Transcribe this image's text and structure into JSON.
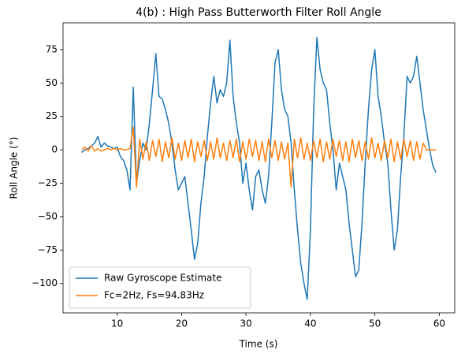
{
  "chart_data": {
    "type": "line",
    "title": "4(b) : High Pass Butterworth Filter Roll Angle",
    "xlabel": "Time (s)",
    "ylabel": "Roll Angle (°)",
    "xlim": [
      1.6,
      62.4
    ],
    "ylim": [
      -122,
      95
    ],
    "xticks": [
      10,
      20,
      30,
      40,
      50,
      60
    ],
    "yticks": [
      {
        "value": -100,
        "label": "−100"
      },
      {
        "value": -75,
        "label": "−75"
      },
      {
        "value": -50,
        "label": "−50"
      },
      {
        "value": -25,
        "label": "−25"
      },
      0,
      25,
      50,
      75
    ],
    "legend": "lower left",
    "x": [
      4.5,
      5,
      5.5,
      6,
      6.5,
      7,
      7.5,
      8,
      8.5,
      9,
      9.5,
      10,
      10.5,
      11,
      11.5,
      12,
      12.5,
      13,
      13.5,
      14,
      14.5,
      15,
      15.5,
      16,
      16.5,
      17,
      17.5,
      18,
      18.5,
      19,
      19.5,
      20,
      20.5,
      21,
      21.5,
      22,
      22.5,
      23,
      23.5,
      24,
      24.5,
      25,
      25.5,
      26,
      26.5,
      27,
      27.5,
      28,
      28.5,
      29,
      29.5,
      30,
      30.5,
      31,
      31.5,
      32,
      32.5,
      33,
      33.5,
      34,
      34.5,
      35,
      35.5,
      36,
      36.5,
      37,
      37.5,
      38,
      38.5,
      39,
      39.5,
      40,
      40.5,
      41,
      41.5,
      42,
      42.5,
      43,
      43.5,
      44,
      44.5,
      45,
      45.5,
      46,
      46.5,
      47,
      47.5,
      48,
      48.5,
      49,
      49.5,
      50,
      50.5,
      51,
      51.5,
      52,
      52.5,
      53,
      53.5,
      54,
      54.5,
      55,
      55.5,
      56,
      56.5,
      57,
      57.5,
      58,
      58.5,
      59,
      59.5
    ],
    "series": [
      {
        "name": "Raw Gyroscope Estimate",
        "color": "#1f77b4",
        "values": [
          -2,
          0,
          1,
          3,
          5,
          10,
          2,
          5,
          3,
          2,
          1,
          2,
          -5,
          -8,
          -15,
          -30,
          47,
          -25,
          -8,
          5,
          0,
          20,
          45,
          72,
          40,
          38,
          30,
          20,
          5,
          -15,
          -30,
          -25,
          -20,
          -40,
          -60,
          -82,
          -70,
          -40,
          -20,
          10,
          35,
          55,
          35,
          45,
          40,
          50,
          82,
          40,
          20,
          5,
          -25,
          -10,
          -30,
          -45,
          -20,
          -15,
          -30,
          -40,
          -20,
          20,
          65,
          75,
          45,
          30,
          25,
          5,
          -30,
          -60,
          -85,
          -100,
          -112,
          -60,
          30,
          84,
          60,
          50,
          45,
          20,
          0,
          -30,
          -10,
          -20,
          -30,
          -55,
          -75,
          -95,
          -90,
          -55,
          -10,
          30,
          60,
          75,
          40,
          25,
          5,
          -10,
          -45,
          -75,
          -60,
          -20,
          10,
          55,
          50,
          55,
          70,
          50,
          30,
          15,
          0,
          -12,
          -17
        ]
      },
      {
        "name": "Fc=2Hz, Fs=94.83Hz",
        "color": "#ff7f0e",
        "values": [
          0,
          2,
          -1,
          3,
          -1,
          1,
          -1,
          0,
          1,
          0,
          1,
          0,
          1,
          0,
          0,
          1,
          17,
          -28,
          8,
          -7,
          6,
          -8,
          7,
          -5,
          8,
          -9,
          6,
          -6,
          9,
          -7,
          5,
          -8,
          7,
          -6,
          8,
          -9,
          6,
          -5,
          7,
          -8,
          6,
          -7,
          9,
          -6,
          5,
          -8,
          7,
          -6,
          8,
          -9,
          6,
          -7,
          8,
          -5,
          7,
          -8,
          6,
          -9,
          8,
          -6,
          7,
          -8,
          6,
          -7,
          5,
          -28,
          8,
          -6,
          9,
          -7,
          5,
          -8,
          7,
          -6,
          8,
          -9,
          6,
          -7,
          8,
          -5,
          7,
          -8,
          6,
          -9,
          8,
          -6,
          7,
          -8,
          6,
          -7,
          9,
          -6,
          5,
          -8,
          7,
          -6,
          8,
          -9,
          6,
          -7,
          8,
          -5,
          7,
          -8,
          6,
          -7,
          5,
          0,
          0,
          0,
          0
        ]
      }
    ]
  }
}
